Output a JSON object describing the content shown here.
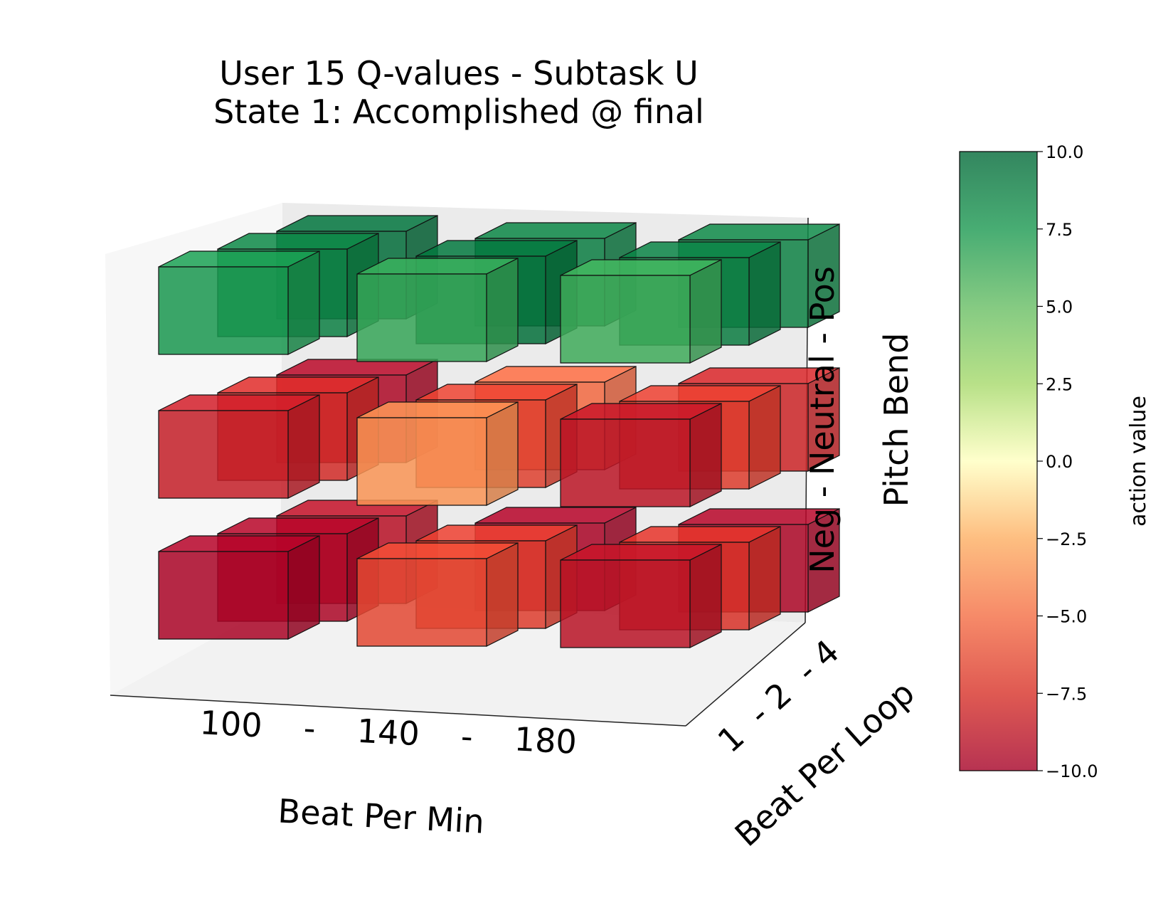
{
  "chart_data": {
    "type": "3d-bar",
    "title": [
      "User 15 Q-values  -  Subtask U",
      "State 1: Accomplished @ final"
    ],
    "xlabel": "Beat Per Min",
    "ylabel": "Beat Per Loop",
    "zlabel": "Pitch Bend",
    "x_ticklabel": "100    -    140    -    180",
    "y_ticklabel": "1  - 2  - 4",
    "z_ticklabel": "Neg - Neutral - Pos",
    "x_categories": [
      "100",
      "140",
      "180"
    ],
    "y_categories": [
      "1",
      "2",
      "4"
    ],
    "z_categories": [
      "Neg",
      "Neutral",
      "Pos"
    ],
    "values": {
      "Neg": [
        [
          -9.8,
          -6.5,
          -9.0
        ],
        [
          -9.7,
          -7.0,
          -7.5
        ],
        [
          -9.1,
          -9.8,
          -9.7
        ]
      ],
      "Neutral": [
        [
          -8.5,
          -3.5,
          -8.9
        ],
        [
          -7.8,
          -6.9,
          -7.0
        ],
        [
          -9.6,
          -5.2,
          -8.1
        ]
      ],
      "Pos": [
        [
          7.6,
          6.6,
          6.3
        ],
        [
          8.8,
          9.6,
          9.0
        ],
        [
          9.8,
          8.9,
          8.7
        ]
      ]
    },
    "colorbar": {
      "label": "action value",
      "min": -10.0,
      "max": 10.0,
      "ticks": [
        "10.0",
        "7.5",
        "5.0",
        "2.5",
        "0.0",
        "−2.5",
        "−5.0",
        "−7.5",
        "−10.0"
      ]
    }
  }
}
